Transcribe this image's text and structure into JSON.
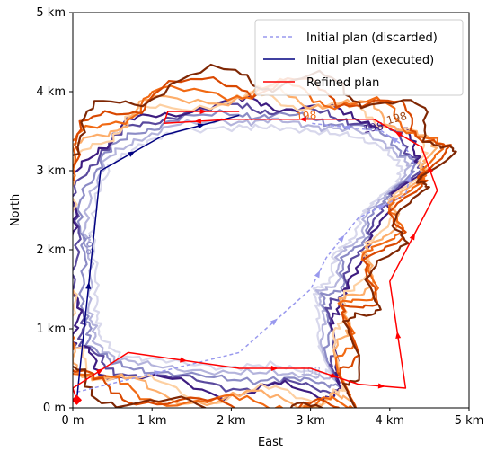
{
  "chart_data": {
    "type": "line",
    "title": "",
    "xlabel": "East",
    "ylabel": "North",
    "xlim": [
      0,
      5
    ],
    "ylim": [
      0,
      5
    ],
    "x_ticks": [
      {
        "value": 0,
        "label": "0 m"
      },
      {
        "value": 1,
        "label": "1 km"
      },
      {
        "value": 2,
        "label": "2 km"
      },
      {
        "value": 3,
        "label": "3 km"
      },
      {
        "value": 4,
        "label": "4 km"
      },
      {
        "value": 5,
        "label": "5 km"
      }
    ],
    "y_ticks": [
      {
        "value": 0,
        "label": "0 m"
      },
      {
        "value": 1,
        "label": "1 km"
      },
      {
        "value": 2,
        "label": "2 km"
      },
      {
        "value": 3,
        "label": "3 km"
      },
      {
        "value": 4,
        "label": "4 km"
      },
      {
        "value": 5,
        "label": "5 km"
      }
    ],
    "grid": false,
    "legend_position": "top-right",
    "series": [
      {
        "name": "Initial plan (discarded)",
        "color": "#9999ee",
        "style": "dashed",
        "points": [
          [
            0.05,
            0.2
          ],
          [
            2.1,
            0.7
          ],
          [
            3.0,
            1.5
          ],
          [
            3.2,
            1.9
          ],
          [
            3.6,
            2.4
          ],
          [
            4.2,
            2.7
          ],
          [
            4.3,
            3.1
          ],
          [
            4.2,
            3.3
          ],
          [
            3.9,
            3.5
          ],
          [
            3.0,
            3.6
          ]
        ]
      },
      {
        "name": "Initial plan (executed)",
        "color": "#000080",
        "style": "solid",
        "points": [
          [
            0.05,
            0.1
          ],
          [
            0.35,
            3.0
          ],
          [
            1.15,
            3.45
          ],
          [
            2.1,
            3.7
          ]
        ]
      },
      {
        "name": "Refined plan",
        "color": "#ff0000",
        "style": "solid",
        "points": [
          [
            0.05,
            0.1
          ],
          [
            0.0,
            0.25
          ],
          [
            0.7,
            0.7
          ],
          [
            2.1,
            0.5
          ],
          [
            3.0,
            0.5
          ],
          [
            3.6,
            0.3
          ],
          [
            4.2,
            0.25
          ],
          [
            4.0,
            1.6
          ],
          [
            4.6,
            2.75
          ],
          [
            4.4,
            3.3
          ],
          [
            3.8,
            3.65
          ],
          [
            2.0,
            3.65
          ],
          [
            1.15,
            3.6
          ],
          [
            1.2,
            3.75
          ],
          [
            2.1,
            3.75
          ]
        ]
      }
    ],
    "contours": [
      {
        "color": "#d8d8ec",
        "offset": 0.0
      },
      {
        "color": "#b4b4dc",
        "offset": 0.08
      },
      {
        "color": "#8c8cc6",
        "offset": 0.16
      },
      {
        "color": "#5a4a9e",
        "offset": 0.24
      },
      {
        "color": "#3d1c80",
        "offset": 0.3
      },
      {
        "color": "#fdd0a2",
        "offset": 0.36
      },
      {
        "color": "#fdae6b",
        "offset": 0.42
      },
      {
        "color": "#f16913",
        "offset": 0.48
      },
      {
        "color": "#d94801",
        "offset": 0.54
      },
      {
        "color": "#7f2704",
        "offset": 0.62
      }
    ],
    "contour_labels": [
      {
        "text": "198",
        "x": 4.1,
        "y": 3.62,
        "angle": 15,
        "color": "#9c4a1a"
      },
      {
        "text": "198",
        "x": 3.8,
        "y": 3.5,
        "angle": 10,
        "color": "#3d1c80"
      },
      {
        "text": "198",
        "x": 2.95,
        "y": 3.65,
        "angle": 5,
        "color": "#f16913"
      },
      {
        "text": "198",
        "x": 0.15,
        "y": 2.05,
        "angle": -75,
        "color": "#8c8cc6"
      },
      {
        "text": "198",
        "x": 3.0,
        "y": 0.42,
        "angle": 0,
        "color": "#b4b4dc"
      }
    ]
  }
}
